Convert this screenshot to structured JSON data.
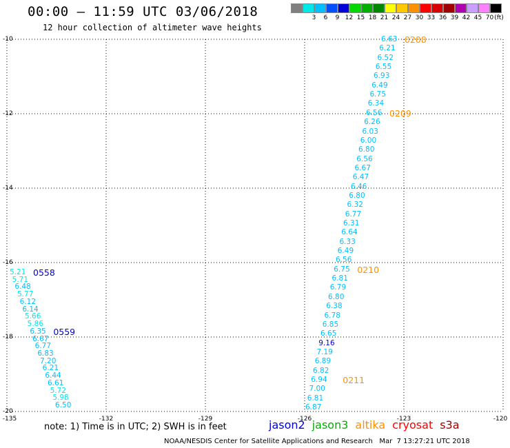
{
  "title": "00:00 – 11:59 UTC 03/06/2018",
  "subtitle": "12 hour collection of altimeter wave heights",
  "legend": {
    "unit": "(ft)",
    "bins": [
      {
        "label": "",
        "color": "#808080"
      },
      {
        "label": "3",
        "color": "#00e8e8"
      },
      {
        "label": "6",
        "color": "#00c0ff"
      },
      {
        "label": "9",
        "color": "#0050ff"
      },
      {
        "label": "12",
        "color": "#0000d8"
      },
      {
        "label": "15",
        "color": "#00d800"
      },
      {
        "label": "18",
        "color": "#00b000"
      },
      {
        "label": "21",
        "color": "#008800"
      },
      {
        "label": "24",
        "color": "#ffff00"
      },
      {
        "label": "27",
        "color": "#ffc800"
      },
      {
        "label": "30",
        "color": "#ff9000"
      },
      {
        "label": "33",
        "color": "#ff0000"
      },
      {
        "label": "36",
        "color": "#d80000"
      },
      {
        "label": "39",
        "color": "#a00000"
      },
      {
        "label": "42",
        "color": "#b000b0"
      },
      {
        "label": "45",
        "color": "#c8a0ff"
      },
      {
        "label": "70",
        "color": "#ff80ff"
      },
      {
        "label": "",
        "color": "#000000"
      }
    ]
  },
  "map": {
    "lat_labels": [
      "-10",
      "-12",
      "-14",
      "-16",
      "-18",
      "-20"
    ],
    "lon_labels": [
      "-135",
      "-132",
      "-129",
      "-126",
      "-123",
      "-120"
    ],
    "lat_range": [
      -20,
      -10
    ],
    "lon_range": [
      -135,
      -120
    ],
    "grid": "dotted"
  },
  "colors": {
    "swh_default": "#00c0ff",
    "swh_low": "#00e8e8",
    "swh_high": "#0000d8",
    "jason2": "#0000d8",
    "jason3": "#00b000",
    "altika": "#ff9000",
    "cryosat": "#ff0000",
    "s3a": "#a00000"
  },
  "tracks": [
    {
      "satellite": "altika",
      "readings": [
        "6.63",
        "6.21",
        "6.52",
        "6.55",
        "6.93",
        "6.49",
        "6.75",
        "6.34",
        "6.56",
        "6.26",
        "6.03",
        "6.00",
        "6.80",
        "6.56",
        "6.67",
        "6.47",
        "6.46",
        "6.80",
        "6.32",
        "6.77",
        "6.31",
        "6.64",
        "6.33",
        "6.49",
        "6.56",
        "6.75",
        "6.81",
        "6.79",
        "6.80",
        "6.38",
        "6.78",
        "6.85",
        "6.65",
        "9.16",
        "7.19",
        "6.89",
        "6.82",
        "6.94",
        "7.00",
        "6.81",
        "6.87"
      ],
      "time_labels": [
        "0208",
        "0209",
        "0210",
        "0211"
      ]
    },
    {
      "satellite": "jason2",
      "readings": [
        "5.21",
        "5.71",
        "6.48",
        "5.77",
        "6.12",
        "6.14",
        "5.66",
        "5.86",
        "6.35",
        "6.67",
        "6.77",
        "6.83",
        "7.20",
        "6.21",
        "6.44",
        "6.61",
        "5.72",
        "5.98",
        "6.50"
      ],
      "time_labels": [
        "0558",
        "0559"
      ]
    }
  ],
  "note": "note: 1) Time is in UTC; 2) SWH is in feet",
  "satellites": [
    {
      "name": "jason2",
      "color": "#0000d8"
    },
    {
      "name": "jason3",
      "color": "#00b000"
    },
    {
      "name": "altika",
      "color": "#ff9000"
    },
    {
      "name": "cryosat",
      "color": "#ff0000"
    },
    {
      "name": "s3a",
      "color": "#a00000"
    }
  ],
  "credit": "NOAA/NESDIS Center for Satellite Applications and Research   Mar  7 13:27:21 UTC 2018"
}
